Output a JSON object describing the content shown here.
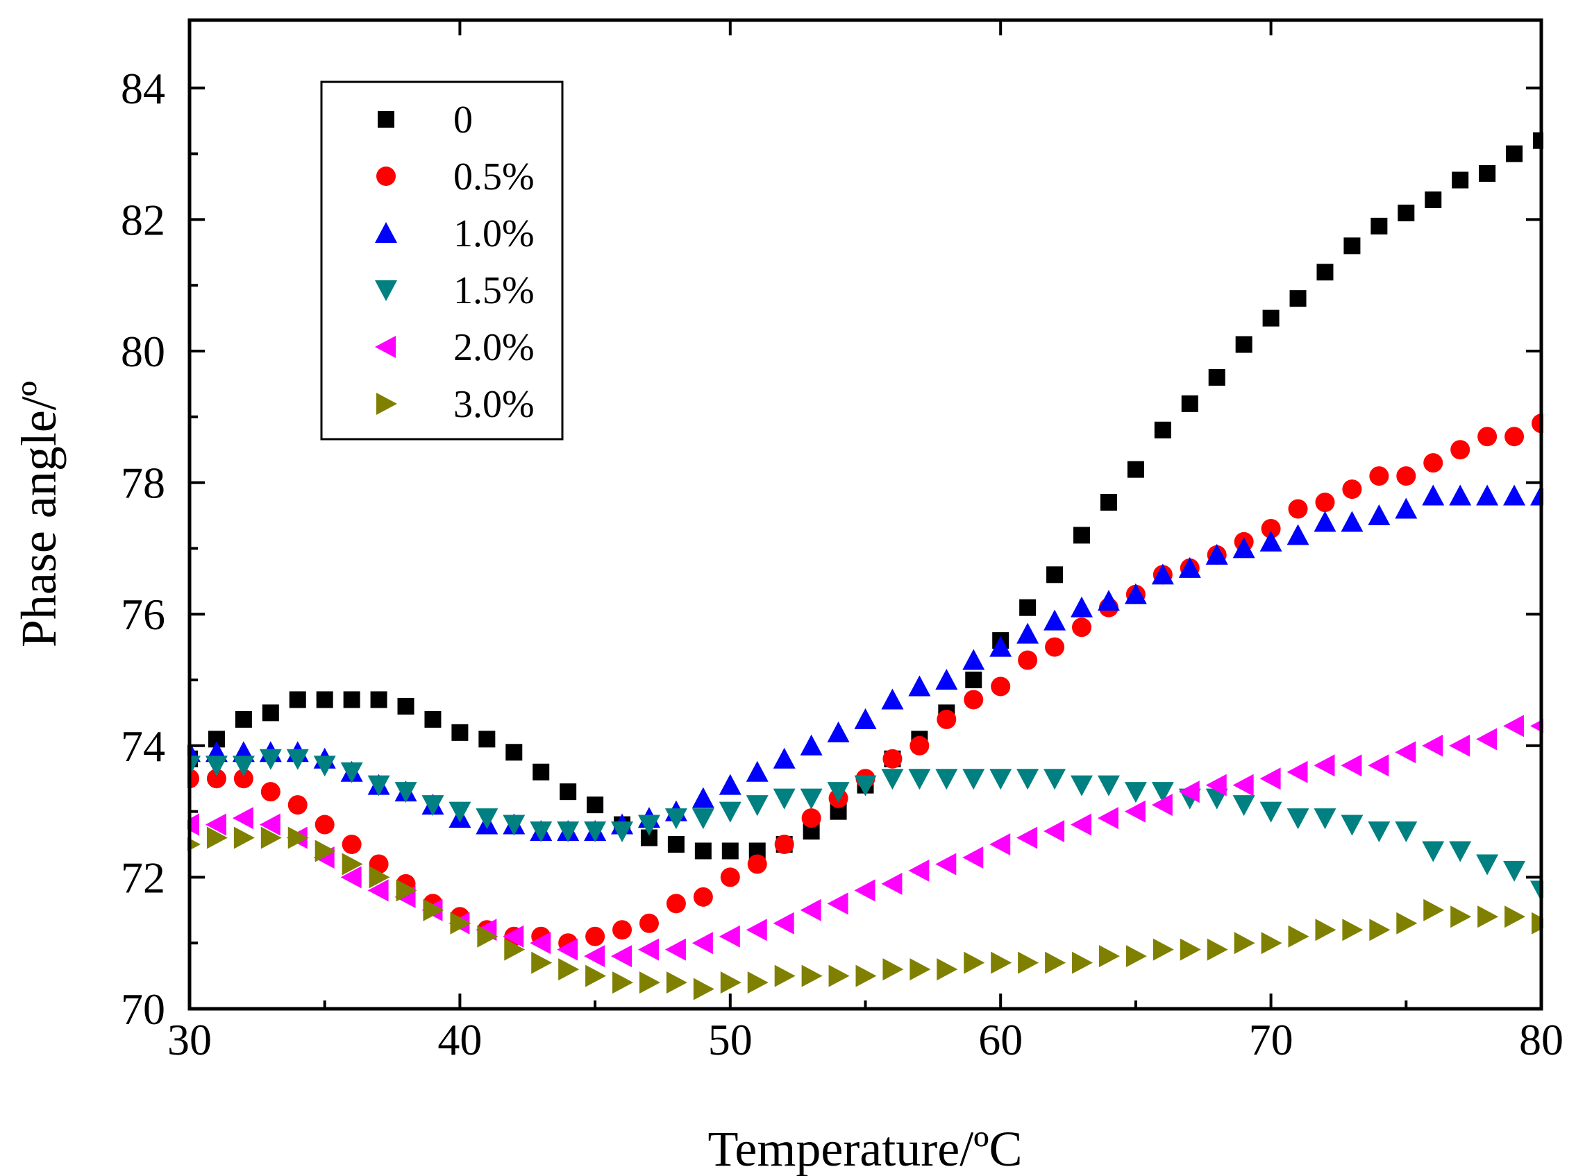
{
  "chart_data": {
    "type": "scatter",
    "xlabel": "Temperature/ºC",
    "ylabel": "Phase angle/º",
    "xlim": [
      30,
      80
    ],
    "ylim": [
      70,
      85
    ],
    "xticks": [
      30,
      40,
      50,
      60,
      70,
      80
    ],
    "yticks": [
      70,
      72,
      74,
      76,
      78,
      80,
      82,
      84
    ],
    "legend_position": "top-left",
    "x": [
      30,
      31,
      32,
      33,
      34,
      35,
      36,
      37,
      38,
      39,
      40,
      41,
      42,
      43,
      44,
      45,
      46,
      47,
      48,
      49,
      50,
      51,
      52,
      53,
      54,
      55,
      56,
      57,
      58,
      59,
      60,
      61,
      62,
      63,
      64,
      65,
      66,
      67,
      68,
      69,
      70,
      71,
      72,
      73,
      74,
      75,
      76,
      77,
      78,
      79,
      80
    ],
    "series": [
      {
        "name": "0",
        "marker": "square",
        "color": "#000000",
        "values": [
          73.8,
          74.1,
          74.4,
          74.5,
          74.7,
          74.7,
          74.7,
          74.7,
          74.6,
          74.4,
          74.2,
          74.1,
          73.9,
          73.6,
          73.3,
          73.1,
          72.8,
          72.6,
          72.5,
          72.4,
          72.4,
          72.4,
          72.5,
          72.7,
          73.0,
          73.4,
          73.8,
          74.1,
          74.5,
          75.0,
          75.6,
          76.1,
          76.6,
          77.2,
          77.7,
          78.2,
          78.8,
          79.2,
          79.6,
          80.1,
          80.5,
          80.8,
          81.2,
          81.6,
          81.9,
          82.1,
          82.3,
          82.6,
          82.7,
          83.0,
          83.2
        ]
      },
      {
        "name": "0.5%",
        "marker": "circle",
        "color": "#ff0000",
        "values": [
          73.5,
          73.5,
          73.5,
          73.3,
          73.1,
          72.8,
          72.5,
          72.2,
          71.9,
          71.6,
          71.4,
          71.2,
          71.1,
          71.1,
          71.0,
          71.1,
          71.2,
          71.3,
          71.6,
          71.7,
          72.0,
          72.2,
          72.5,
          72.9,
          73.2,
          73.5,
          73.8,
          74.0,
          74.4,
          74.7,
          74.9,
          75.3,
          75.5,
          75.8,
          76.1,
          76.3,
          76.6,
          76.7,
          76.9,
          77.1,
          77.3,
          77.6,
          77.7,
          77.9,
          78.1,
          78.1,
          78.3,
          78.5,
          78.7,
          78.7,
          78.9
        ]
      },
      {
        "name": "1.0%",
        "marker": "triangle-up",
        "color": "#0000ff",
        "values": [
          73.9,
          73.9,
          73.9,
          73.9,
          73.9,
          73.8,
          73.6,
          73.4,
          73.3,
          73.1,
          72.9,
          72.8,
          72.8,
          72.7,
          72.7,
          72.7,
          72.8,
          72.9,
          73.0,
          73.2,
          73.4,
          73.6,
          73.8,
          74.0,
          74.2,
          74.4,
          74.7,
          74.9,
          75.0,
          75.3,
          75.5,
          75.7,
          75.9,
          76.1,
          76.2,
          76.3,
          76.6,
          76.7,
          76.9,
          77.0,
          77.1,
          77.2,
          77.4,
          77.4,
          77.5,
          77.6,
          77.8,
          77.8,
          77.8,
          77.8,
          77.8
        ]
      },
      {
        "name": "1.5%",
        "marker": "triangle-down",
        "color": "#008080",
        "values": [
          73.7,
          73.7,
          73.7,
          73.8,
          73.8,
          73.7,
          73.6,
          73.4,
          73.3,
          73.1,
          73.0,
          72.9,
          72.8,
          72.7,
          72.7,
          72.7,
          72.7,
          72.8,
          72.9,
          72.9,
          73.0,
          73.1,
          73.2,
          73.2,
          73.3,
          73.4,
          73.5,
          73.5,
          73.5,
          73.5,
          73.5,
          73.5,
          73.5,
          73.4,
          73.4,
          73.3,
          73.3,
          73.2,
          73.2,
          73.1,
          73.0,
          72.9,
          72.9,
          72.8,
          72.7,
          72.7,
          72.4,
          72.4,
          72.2,
          72.1,
          71.8
        ]
      },
      {
        "name": "2.0%",
        "marker": "triangle-left",
        "color": "#ff00ff",
        "values": [
          72.8,
          72.8,
          72.9,
          72.8,
          72.6,
          72.3,
          72.0,
          71.8,
          71.7,
          71.5,
          71.3,
          71.2,
          71.1,
          71.0,
          70.9,
          70.8,
          70.8,
          70.9,
          70.9,
          71.0,
          71.1,
          71.2,
          71.3,
          71.5,
          71.6,
          71.8,
          71.9,
          72.1,
          72.2,
          72.3,
          72.5,
          72.6,
          72.7,
          72.8,
          72.9,
          73.0,
          73.1,
          73.3,
          73.4,
          73.4,
          73.5,
          73.6,
          73.7,
          73.7,
          73.7,
          73.9,
          74.0,
          74.0,
          74.1,
          74.3,
          74.3
        ]
      },
      {
        "name": "3.0%",
        "marker": "triangle-right",
        "color": "#808000",
        "values": [
          72.5,
          72.6,
          72.6,
          72.6,
          72.6,
          72.4,
          72.2,
          72.0,
          71.8,
          71.5,
          71.3,
          71.1,
          70.9,
          70.7,
          70.6,
          70.5,
          70.4,
          70.4,
          70.4,
          70.3,
          70.4,
          70.4,
          70.5,
          70.5,
          70.5,
          70.5,
          70.6,
          70.6,
          70.6,
          70.7,
          70.7,
          70.7,
          70.7,
          70.7,
          70.8,
          70.8,
          70.9,
          70.9,
          70.9,
          71.0,
          71.0,
          71.1,
          71.2,
          71.2,
          71.2,
          71.3,
          71.5,
          71.4,
          71.4,
          71.4,
          71.3
        ]
      }
    ]
  }
}
